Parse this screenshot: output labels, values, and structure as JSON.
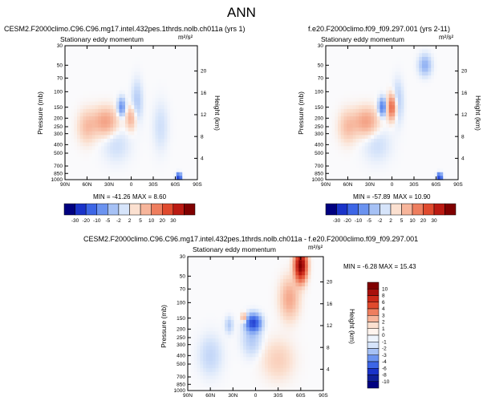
{
  "page": {
    "title": "ANN"
  },
  "panels": [
    {
      "title": "CESM2.F2000climo.C96.C96.mg17.intel.432pes.1thrds.nolb.ch011a (yrs 1)",
      "subtitle": "Stationary eddy momentum",
      "units": "m²/s²",
      "ylabel": "Pressure (mb)",
      "ylabel_right": "Height (km)",
      "min_label": "MIN = -41.26",
      "max_label": "MAX =   8.60"
    },
    {
      "title": "f.e20.F2000climo.f09_f09.297.001 (yrs 2-11)",
      "subtitle": "Stationary eddy momentum",
      "units": "m²/s²",
      "ylabel": "Pressure (mb)",
      "ylabel_right": "Height (km)",
      "min_label": "MIN = -57.89",
      "max_label": "MAX = 10.90"
    },
    {
      "title": "CESM2.F2000climo.C96.C96.mg17.intel.432pes.1thrds.nolb.ch011a - f.e20.F2000climo.f09_f09.297.001",
      "subtitle": "Stationary eddy momentum",
      "units": "m²/s²",
      "ylabel": "Pressure (mb)",
      "ylabel_right": "Height (km)",
      "min_label": "MIN = -6.28",
      "max_label": "MAX = 15.43"
    }
  ],
  "chart_data": [
    {
      "type": "heatmap",
      "title": "CESM2.F2000climo.C96.C96.mg17.intel.432pes.1thrds.nolb.ch011a (yrs 1)",
      "subtitle": "Stationary eddy momentum",
      "xlabel": "",
      "ylabel": "Pressure (mb)",
      "ylabel_right": "Height (km)",
      "x_ticks": [
        "90N",
        "60N",
        "30N",
        "0",
        "30S",
        "60S",
        "90S"
      ],
      "x_range": [
        90,
        -90
      ],
      "y_ticks": [
        "30",
        "50",
        "70",
        "100",
        "150",
        "200",
        "250",
        "300",
        "400",
        "500",
        "700",
        "850",
        "1000"
      ],
      "y_tick_values": [
        30,
        50,
        70,
        100,
        150,
        200,
        250,
        300,
        400,
        500,
        700,
        850,
        1000
      ],
      "y_range": [
        30,
        1000
      ],
      "height_ticks": [
        "4",
        "8",
        "12",
        "16",
        "20"
      ],
      "min": -41.26,
      "max": 8.6,
      "blobs": [
        {
          "lat": 35,
          "p": 220,
          "w": 16,
          "h": 0.35,
          "value": 5
        },
        {
          "lat": 0,
          "p": 200,
          "w": 7,
          "h": 0.3,
          "value": 4
        },
        {
          "lat": 60,
          "p": 250,
          "w": 12,
          "h": 0.4,
          "value": 3
        },
        {
          "lat": 13,
          "p": 150,
          "w": 5,
          "h": 0.22,
          "value": -8
        },
        {
          "lat": -8,
          "p": 130,
          "w": 7,
          "h": 0.5,
          "value": -3
        },
        {
          "lat": 20,
          "p": 400,
          "w": 18,
          "h": 0.45,
          "value": -1.5
        },
        {
          "lat": -40,
          "p": 250,
          "w": 10,
          "h": 0.6,
          "value": -1.5
        },
        {
          "lat": -65,
          "p": 930,
          "w": 3,
          "h": 0.08,
          "value": -25
        }
      ]
    },
    {
      "type": "heatmap",
      "title": "f.e20.F2000climo.f09_f09.297.001 (yrs 2-11)",
      "subtitle": "Stationary eddy momentum",
      "xlabel": "",
      "ylabel": "Pressure (mb)",
      "ylabel_right": "Height (km)",
      "x_ticks": [
        "90N",
        "60N",
        "30N",
        "0",
        "30S",
        "60S",
        "90S"
      ],
      "x_range": [
        90,
        -90
      ],
      "y_ticks": [
        "30",
        "50",
        "70",
        "100",
        "150",
        "200",
        "250",
        "300",
        "400",
        "500",
        "700",
        "850",
        "1000"
      ],
      "y_tick_values": [
        30,
        50,
        70,
        100,
        150,
        200,
        250,
        300,
        400,
        500,
        700,
        850,
        1000
      ],
      "y_range": [
        30,
        1000
      ],
      "height_ticks": [
        "4",
        "8",
        "12",
        "16",
        "20"
      ],
      "min": -57.89,
      "max": 10.9,
      "blobs": [
        {
          "lat": 35,
          "p": 220,
          "w": 16,
          "h": 0.35,
          "value": 5
        },
        {
          "lat": 0,
          "p": 150,
          "w": 6,
          "h": 0.3,
          "value": 10
        },
        {
          "lat": 60,
          "p": 250,
          "w": 12,
          "h": 0.4,
          "value": 3
        },
        {
          "lat": 13,
          "p": 150,
          "w": 5,
          "h": 0.22,
          "value": -10
        },
        {
          "lat": -45,
          "p": 50,
          "w": 8,
          "h": 0.25,
          "value": -5
        },
        {
          "lat": -8,
          "p": 130,
          "w": 7,
          "h": 0.5,
          "value": -3
        },
        {
          "lat": 20,
          "p": 400,
          "w": 18,
          "h": 0.45,
          "value": -1.5
        },
        {
          "lat": -65,
          "p": 930,
          "w": 3,
          "h": 0.08,
          "value": -25
        }
      ]
    },
    {
      "type": "heatmap",
      "title": "CESM2.F2000climo.C96.C96.mg17.intel.432pes.1thrds.nolb.ch011a - f.e20.F2000climo.f09_f09.297.001",
      "subtitle": "Stationary eddy momentum",
      "xlabel": "",
      "ylabel": "Pressure (mb)",
      "ylabel_right": "Height (km)",
      "x_ticks": [
        "90N",
        "60N",
        "30N",
        "0",
        "30S",
        "60S",
        "90S"
      ],
      "x_range": [
        90,
        -90
      ],
      "y_ticks": [
        "30",
        "50",
        "70",
        "100",
        "150",
        "200",
        "250",
        "300",
        "400",
        "500",
        "700",
        "850",
        "1000"
      ],
      "y_tick_values": [
        30,
        50,
        70,
        100,
        150,
        200,
        250,
        300,
        400,
        500,
        700,
        850,
        1000
      ],
      "y_range": [
        30,
        1000
      ],
      "height_ticks": [
        "4",
        "8",
        "12",
        "16",
        "20"
      ],
      "min": -6.28,
      "max": 15.43,
      "blobs": [
        {
          "lat": -60,
          "p": 38,
          "w": 7,
          "h": 0.35,
          "value": 10
        },
        {
          "lat": -45,
          "p": 90,
          "w": 12,
          "h": 0.5,
          "value": 1.5
        },
        {
          "lat": 15,
          "p": 150,
          "w": 4,
          "h": 0.12,
          "value": 2
        },
        {
          "lat": 3,
          "p": 170,
          "w": 9,
          "h": 0.2,
          "value": -6
        },
        {
          "lat": 5,
          "p": 260,
          "w": 12,
          "h": 0.4,
          "value": -1
        },
        {
          "lat": 35,
          "p": 180,
          "w": 5,
          "h": 0.2,
          "value": -1
        },
        {
          "lat": -30,
          "p": 450,
          "w": 20,
          "h": 0.5,
          "value": 0.7
        },
        {
          "lat": 60,
          "p": 400,
          "w": 15,
          "h": 0.5,
          "value": -0.7
        }
      ]
    }
  ],
  "colorbars": [
    {
      "orientation": "horizontal",
      "labels": [
        "-30",
        "-20",
        "-10",
        "-5",
        "-2",
        "2",
        "5",
        "10",
        "20",
        "30"
      ],
      "colors": [
        "#000080",
        "#1a33c9",
        "#3d66e6",
        "#6b93f0",
        "#a6c1f5",
        "#d6e4fa",
        "#fbe0d0",
        "#f7b59b",
        "#ee7e5f",
        "#e04a2e",
        "#bb1a12",
        "#800000"
      ]
    },
    {
      "orientation": "horizontal",
      "labels": [
        "-30",
        "-20",
        "-10",
        "-5",
        "-2",
        "2",
        "5",
        "10",
        "20",
        "30"
      ],
      "colors": [
        "#000080",
        "#1a33c9",
        "#3d66e6",
        "#6b93f0",
        "#a6c1f5",
        "#d6e4fa",
        "#fbe0d0",
        "#f7b59b",
        "#ee7e5f",
        "#e04a2e",
        "#bb1a12",
        "#800000"
      ]
    },
    {
      "orientation": "vertical",
      "labels": [
        "10",
        "8",
        "6",
        "4",
        "3",
        "2",
        "1",
        "0",
        "-1",
        "-2",
        "-3",
        "-4",
        "-6",
        "-8",
        "-10"
      ],
      "colors": [
        "#800000",
        "#a8100c",
        "#cc2a1a",
        "#e04a2e",
        "#ee7e5f",
        "#f7b59b",
        "#fbe0d0",
        "#fff4ee",
        "#eef4fd",
        "#d6e4fa",
        "#a6c1f5",
        "#6b93f0",
        "#3d66e6",
        "#1a33c9",
        "#10209a",
        "#000080"
      ]
    }
  ]
}
